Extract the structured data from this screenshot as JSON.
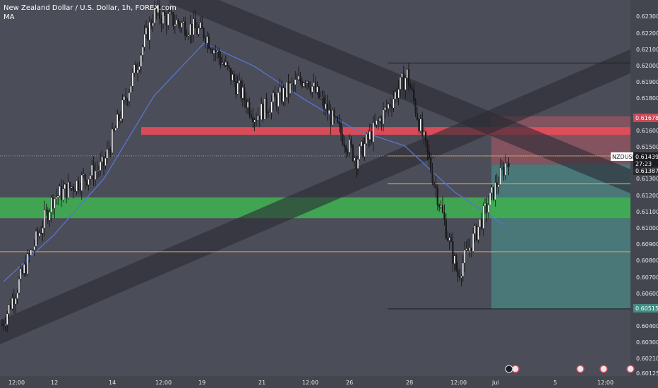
{
  "header": {
    "title": "New Zealand Dollar / U.S. Dollar, 1h, FOREX.com",
    "indicator": "MA"
  },
  "price_axis": {
    "ticks": [
      "0.62300",
      "0.62200",
      "0.62100",
      "0.62000",
      "0.61900",
      "0.61800",
      "0.61600",
      "0.61500",
      "0.61300",
      "0.61200",
      "0.61100",
      "0.61000",
      "0.60900",
      "0.60800",
      "0.60700",
      "0.60600",
      "0.60500",
      "0.60400",
      "0.60300",
      "0.60210",
      "0.60125"
    ]
  },
  "price_labels": {
    "target_high": "0.61678",
    "symbol": "NZDUSD",
    "last": "0.61439",
    "countdown": "27:23",
    "entry": "0.61387",
    "target_low": "0.60515"
  },
  "time_axis": {
    "ticks": [
      "12:00",
      "12",
      "14",
      "12:00",
      "19",
      "21",
      "12:00",
      "26",
      "28",
      "12:00",
      "Jul",
      "5",
      "12:00"
    ]
  },
  "colors": {
    "background": "#4b4d58",
    "resistance_zone": "#e84c5a",
    "support_zone": "#3fae52",
    "ma_line": "#5a72c9",
    "channel": "#2b2c33",
    "level_orange": "#e0a350",
    "stop_area": "#b25a66",
    "profit_area": "#4a8582"
  },
  "chart_data": {
    "type": "candlestick",
    "symbol": "NZDUSD",
    "timeframe": "1h",
    "ylim": [
      0.6011,
      0.6238
    ],
    "candles_approx": {
      "x": [
        "12:00",
        "12",
        "14",
        "12:00",
        "19",
        "21",
        "12:00",
        "26",
        "28",
        "12:00",
        "Jul"
      ],
      "close": [
        0.6042,
        0.6118,
        0.6138,
        0.623,
        0.6218,
        0.6168,
        0.6192,
        0.6142,
        0.6193,
        0.6072,
        0.6143
      ]
    },
    "moving_average": [
      0.6068,
      0.6096,
      0.613,
      0.618,
      0.6212,
      0.6198,
      0.6178,
      0.616,
      0.615,
      0.6122,
      0.6102
    ],
    "zones": [
      {
        "name": "resistance",
        "low": 0.6155,
        "high": 0.616
      },
      {
        "name": "support",
        "low": 0.6108,
        "high": 0.6118
      }
    ],
    "levels": [
      {
        "value": 0.62
      },
      {
        "value": 0.61439
      },
      {
        "value": 0.6127
      },
      {
        "value": 0.6086
      },
      {
        "value": 0.60515
      }
    ],
    "position": {
      "type": "short",
      "stop": 0.61678,
      "entry": 0.61387,
      "target": 0.60515
    }
  }
}
